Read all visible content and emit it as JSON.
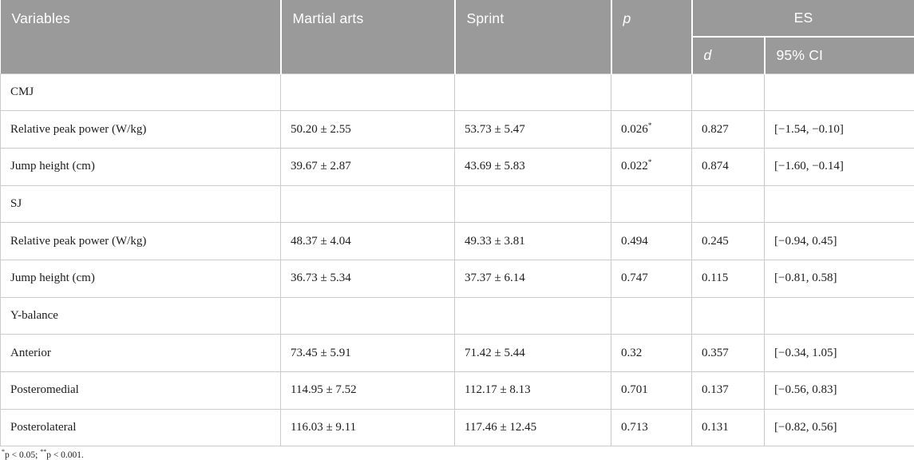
{
  "colors": {
    "header_bg": "#9a9a9a",
    "header_text": "#ffffff",
    "body_text": "#1d1d1d",
    "grid_line": "#cbcbcb"
  },
  "table": {
    "header": {
      "variables": "Variables",
      "martial_arts": "Martial arts",
      "sprint": "Sprint",
      "p": "p",
      "es": "ES",
      "d": "d",
      "ci": "95% CI"
    },
    "rows": [
      {
        "variable": "CMJ",
        "martial": "",
        "sprint": "",
        "p": "",
        "p_sup": "",
        "d": "",
        "ci": ""
      },
      {
        "variable": "Relative peak power (W/kg)",
        "martial": "50.20 ± 2.55",
        "sprint": "53.73 ± 5.47",
        "p": "0.026",
        "p_sup": "*",
        "d": "0.827",
        "ci": "[−1.54, −0.10]"
      },
      {
        "variable": "Jump height (cm)",
        "martial": "39.67 ± 2.87",
        "sprint": "43.69 ± 5.83",
        "p": "0.022",
        "p_sup": "*",
        "d": "0.874",
        "ci": "[−1.60, −0.14]"
      },
      {
        "variable": "SJ",
        "martial": "",
        "sprint": "",
        "p": "",
        "p_sup": "",
        "d": "",
        "ci": ""
      },
      {
        "variable": "Relative peak power (W/kg)",
        "martial": "48.37 ± 4.04",
        "sprint": "49.33 ± 3.81",
        "p": "0.494",
        "p_sup": "",
        "d": "0.245",
        "ci": "[−0.94, 0.45]"
      },
      {
        "variable": "Jump height (cm)",
        "martial": "36.73 ± 5.34",
        "sprint": "37.37 ± 6.14",
        "p": "0.747",
        "p_sup": "",
        "d": "0.115",
        "ci": "[−0.81, 0.58]"
      },
      {
        "variable": "Y-balance",
        "martial": "",
        "sprint": "",
        "p": "",
        "p_sup": "",
        "d": "",
        "ci": ""
      },
      {
        "variable": "Anterior",
        "martial": "73.45 ± 5.91",
        "sprint": "71.42 ± 5.44",
        "p": "0.32",
        "p_sup": "",
        "d": "0.357",
        "ci": "[−0.34, 1.05]"
      },
      {
        "variable": "Posteromedial",
        "martial": "114.95 ± 7.52",
        "sprint": "112.17 ± 8.13",
        "p": "0.701",
        "p_sup": "",
        "d": "0.137",
        "ci": "[−0.56, 0.83]"
      },
      {
        "variable": "Posterolateral",
        "martial": "116.03 ± 9.11",
        "sprint": "117.46 ± 12.45",
        "p": "0.713",
        "p_sup": "",
        "d": "0.131",
        "ci": "[−0.82, 0.56]"
      }
    ]
  },
  "footnote": {
    "sig1": {
      "sup": "*",
      "text": "p < 0.05; "
    },
    "sig2": {
      "sup": "**",
      "text": "p < 0.001."
    }
  }
}
